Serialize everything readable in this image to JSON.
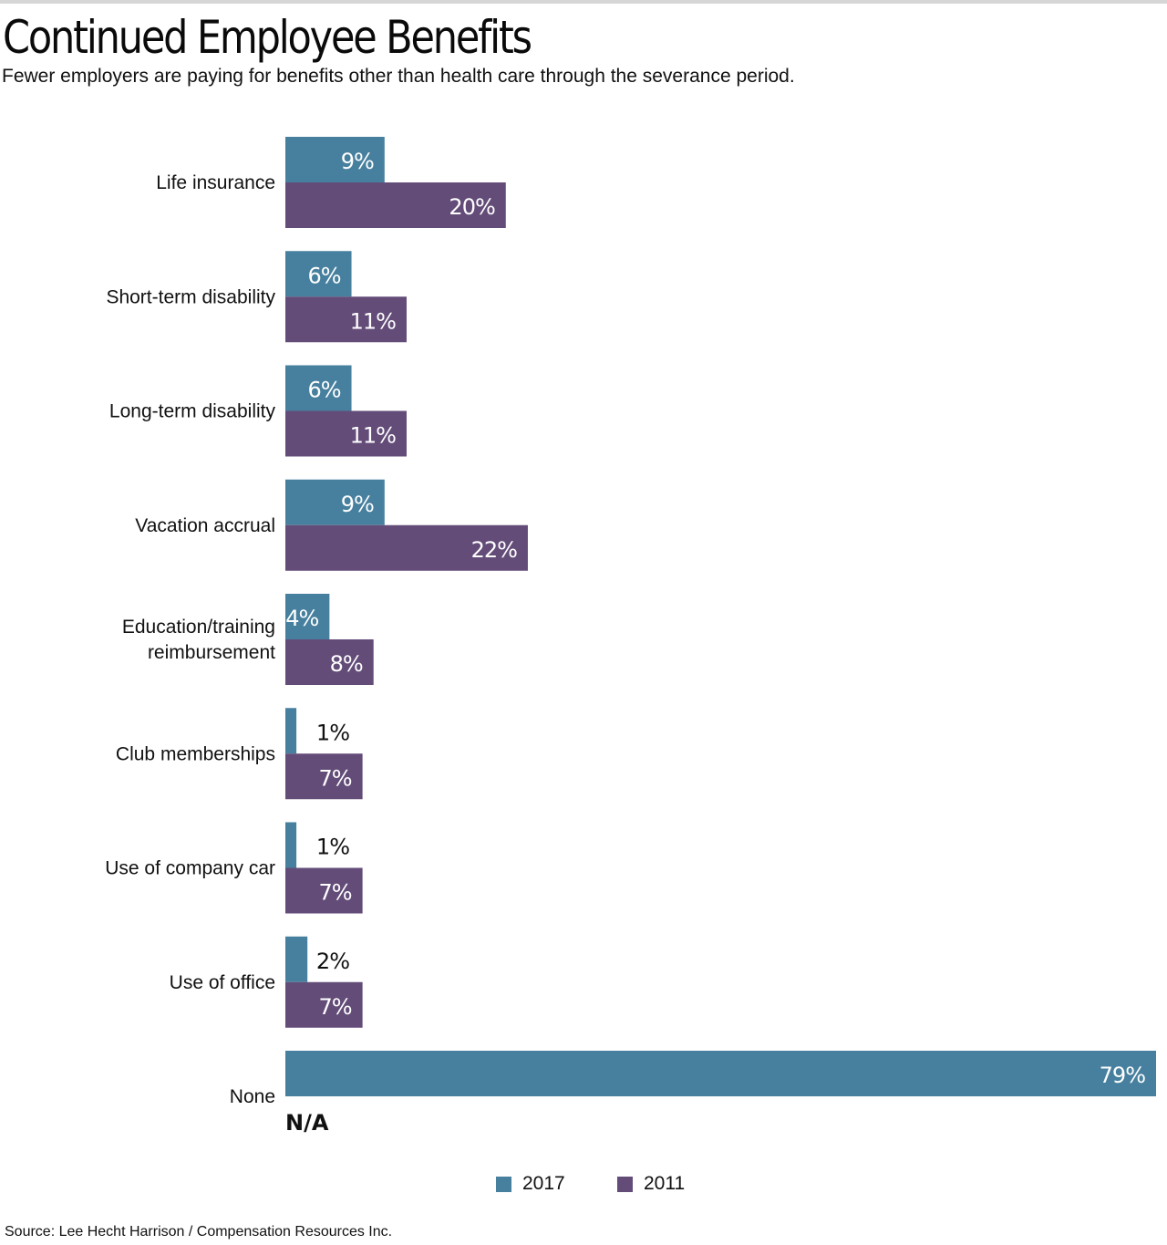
{
  "chart_data": {
    "type": "bar",
    "orientation": "horizontal",
    "title": "Continued Employee Benefits",
    "subtitle": "Fewer employers are paying for benefits other than health care through the severance period.",
    "categories": [
      [
        "Life insurance"
      ],
      [
        "Short-term disability"
      ],
      [
        "Long-term disability"
      ],
      [
        "Vacation accrual"
      ],
      [
        "Education/training",
        "reimbursement"
      ],
      [
        "Club memberships"
      ],
      [
        "Use of company car"
      ],
      [
        "Use of office"
      ],
      [
        "None"
      ]
    ],
    "series": [
      {
        "name": "2017",
        "color": "#47809e",
        "values": [
          9,
          6,
          6,
          9,
          4,
          1,
          1,
          2,
          79
        ],
        "labels": [
          "9%",
          "6%",
          "6%",
          "9%",
          "4%",
          "1%",
          "1%",
          "2%",
          "79%"
        ]
      },
      {
        "name": "2011",
        "color": "#634c78",
        "values": [
          20,
          11,
          11,
          22,
          8,
          7,
          7,
          7,
          null
        ],
        "labels": [
          "20%",
          "11%",
          "11%",
          "22%",
          "8%",
          "7%",
          "7%",
          "7%",
          "N/A"
        ]
      }
    ],
    "xlim": [
      0,
      79
    ],
    "xlabel": "",
    "ylabel": "",
    "grid": false,
    "legend_position": "bottom-center",
    "source": "Source: Lee Hecht Harrison / Compensation Resources Inc."
  }
}
